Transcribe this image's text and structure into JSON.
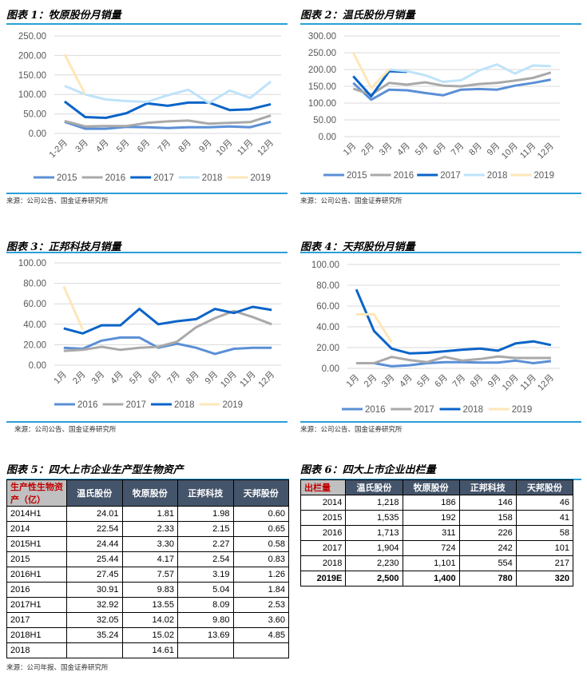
{
  "charts": [
    {
      "title": "图表 1：牧原股份月销量",
      "source": "来源：公司公告、国金证券研究所",
      "chart_data": {
        "type": "line",
        "categories": [
          "1-2月",
          "3月",
          "4月",
          "5月",
          "6月",
          "7月",
          "8月",
          "9月",
          "10月",
          "11月",
          "12月"
        ],
        "yticks": [
          "0.00",
          "50.00",
          "100.00",
          "150.00",
          "200.00",
          "250.00"
        ],
        "ylim": [
          0,
          250
        ],
        "legend": "bottom",
        "series": [
          {
            "name": "2015",
            "color": "#5b8fd6",
            "values": [
              30,
              12,
              12,
              17,
              16,
              14,
              16,
              16,
              18,
              16,
              30
            ]
          },
          {
            "name": "2016",
            "color": "#a9a9a9",
            "values": [
              32,
              18,
              19,
              19,
              27,
              31,
              33,
              25,
              27,
              29,
              46
            ]
          },
          {
            "name": "2017",
            "color": "#0a64c8",
            "values": [
              82,
              42,
              40,
              52,
              77,
              71,
              79,
              79,
              60,
              62,
              75
            ]
          },
          {
            "name": "2018",
            "color": "#bfe3fa",
            "values": [
              122,
              100,
              87,
              83,
              81,
              98,
              112,
              78,
              110,
              91,
              133
            ]
          },
          {
            "name": "2019",
            "color": "#fde7b8",
            "values": [
              203,
              100,
              null,
              null,
              null,
              null,
              null,
              null,
              null,
              null,
              null
            ]
          }
        ]
      }
    },
    {
      "title": "图表 2：温氏股份月销量",
      "source": "来源：公司公告、国金证券研究所",
      "chart_data": {
        "type": "line",
        "categories": [
          "1月",
          "2月",
          "3月",
          "4月",
          "5月",
          "6月",
          "7月",
          "8月",
          "9月",
          "10月",
          "11月",
          "12月"
        ],
        "yticks": [
          "0.00",
          "50.00",
          "100.00",
          "150.00",
          "200.00",
          "250.00",
          "300.00"
        ],
        "ylim": [
          0,
          300
        ],
        "legend": "bottom",
        "series": [
          {
            "name": "2015",
            "color": "#5b8fd6",
            "values": [
              160,
              110,
              140,
              138,
              130,
              123,
              140,
              142,
              140,
              152,
              160,
              170
            ]
          },
          {
            "name": "2016",
            "color": "#a9a9a9",
            "values": [
              143,
              125,
              160,
              155,
              162,
              152,
              150,
              157,
              160,
              167,
              175,
              191
            ]
          },
          {
            "name": "2017",
            "color": "#0a64c8",
            "values": [
              180,
              120,
              195,
              193,
              null,
              null,
              null,
              null,
              null,
              null,
              null,
              null
            ]
          },
          {
            "name": "2018",
            "color": "#bfe3fa",
            "values": [
              null,
              null,
              200,
              195,
              183,
              163,
              168,
              197,
              215,
              188,
              212,
              210
            ]
          },
          {
            "name": "2019",
            "color": "#fde7b8",
            "values": [
              250,
              145,
              200,
              null,
              null,
              null,
              null,
              null,
              null,
              null,
              null,
              null
            ]
          }
        ]
      }
    },
    {
      "title": "图表 3：正邦科技月销量",
      "source": "来源：公司公告、国金证券研究所",
      "chart_data": {
        "type": "line",
        "categories": [
          "1月",
          "2月",
          "3月",
          "4月",
          "5月",
          "6月",
          "7月",
          "8月",
          "9月",
          "10月",
          "11月",
          "12月"
        ],
        "yticks": [
          "0.00",
          "20.00",
          "40.00",
          "60.00",
          "80.00",
          "100.00"
        ],
        "ylim": [
          0,
          100
        ],
        "legend": "bottom",
        "series": [
          {
            "name": "2016",
            "color": "#5b8fd6",
            "values": [
              17,
              16,
              24,
              27,
              27,
              17,
              21,
              17,
              11,
              16,
              17,
              17
            ]
          },
          {
            "name": "2017",
            "color": "#a9a9a9",
            "values": [
              14,
              15,
              18,
              15,
              17,
              18,
              23,
              37,
              46,
              53,
              47,
              40
            ]
          },
          {
            "name": "2018",
            "color": "#0a64c8",
            "values": [
              36,
              31,
              39,
              39,
              55,
              40,
              43,
              45,
              55,
              51,
              57,
              54
            ]
          },
          {
            "name": "2019",
            "color": "#fde7b8",
            "values": [
              77,
              35,
              null,
              null,
              null,
              null,
              null,
              null,
              null,
              null,
              null,
              null
            ]
          }
        ]
      }
    },
    {
      "title": "图表 4：天邦股份月销量",
      "source": "来源：公司公告、国金证券研究所",
      "chart_data": {
        "type": "line",
        "categories": [
          "1月",
          "2月",
          "3月",
          "4月",
          "5月",
          "6月",
          "7月",
          "8月",
          "9月",
          "10月",
          "11月",
          "12月"
        ],
        "yticks": [
          "0.00",
          "20.00",
          "40.00",
          "60.00",
          "80.00",
          "100.00"
        ],
        "ylim": [
          0,
          100
        ],
        "legend": "bottom",
        "series": [
          {
            "name": "2016",
            "color": "#5b8fd6",
            "values": [
              5,
              5,
              2,
              3,
              5,
              6,
              6,
              5.5,
              5.5,
              7.5,
              5,
              7
            ]
          },
          {
            "name": "2017",
            "color": "#a9a9a9",
            "values": [
              5,
              5,
              11,
              8,
              6,
              11,
              7.5,
              9,
              11.5,
              10,
              10,
              10
            ]
          },
          {
            "name": "2018",
            "color": "#0a64c8",
            "values": [
              76,
              36,
              19,
              14.5,
              15,
              16.5,
              18,
              19,
              17,
              24,
              26,
              22.5
            ]
          },
          {
            "name": "2019",
            "color": "#fde7b8",
            "values": [
              52,
              52,
              25,
              null,
              null,
              null,
              null,
              null,
              null,
              null,
              null,
              null
            ]
          }
        ]
      }
    }
  ],
  "table5": {
    "title": "图表 5：四大上市企业生产型生物资产",
    "source": "来源：公司年报、国金证券研究所",
    "corner": "生产性生物资产（亿）",
    "headers": [
      "温氏股份",
      "牧原股份",
      "正邦科技",
      "天邦股份"
    ],
    "rows": [
      [
        "2014H1",
        "24.01",
        "1.81",
        "1.98",
        "0.60"
      ],
      [
        "2014",
        "22.54",
        "2.33",
        "2.15",
        "0.65"
      ],
      [
        "2015H1",
        "24.44",
        "3.30",
        "2.27",
        "0.58"
      ],
      [
        "2015",
        "25.44",
        "4.17",
        "2.54",
        "0.83"
      ],
      [
        "2016H1",
        "27.45",
        "7.57",
        "3.19",
        "1.26"
      ],
      [
        "2016",
        "30.91",
        "9.83",
        "5.04",
        "1.84"
      ],
      [
        "2017H1",
        "32.92",
        "13.55",
        "8.09",
        "2.53"
      ],
      [
        "2017",
        "32.05",
        "14.02",
        "9.80",
        "3.60"
      ],
      [
        "2018H1",
        "35.24",
        "15.02",
        "13.69",
        "4.85"
      ],
      [
        "2018",
        "",
        "14.61",
        "",
        ""
      ]
    ]
  },
  "table6": {
    "title": "图表 6：四大上市企业出栏量",
    "corner": "出栏量",
    "headers": [
      "温氏股份",
      "牧原股份",
      "正邦科技",
      "天邦股份"
    ],
    "rows": [
      [
        "2014",
        "1,218",
        "186",
        "146",
        "46"
      ],
      [
        "2015",
        "1,535",
        "192",
        "158",
        "41"
      ],
      [
        "2016",
        "1,713",
        "311",
        "226",
        "58"
      ],
      [
        "2017",
        "1,904",
        "724",
        "242",
        "101"
      ],
      [
        "2018",
        "2,230",
        "1,101",
        "554",
        "217"
      ],
      [
        "2019E",
        "2,500",
        "1,400",
        "780",
        "320"
      ]
    ]
  }
}
